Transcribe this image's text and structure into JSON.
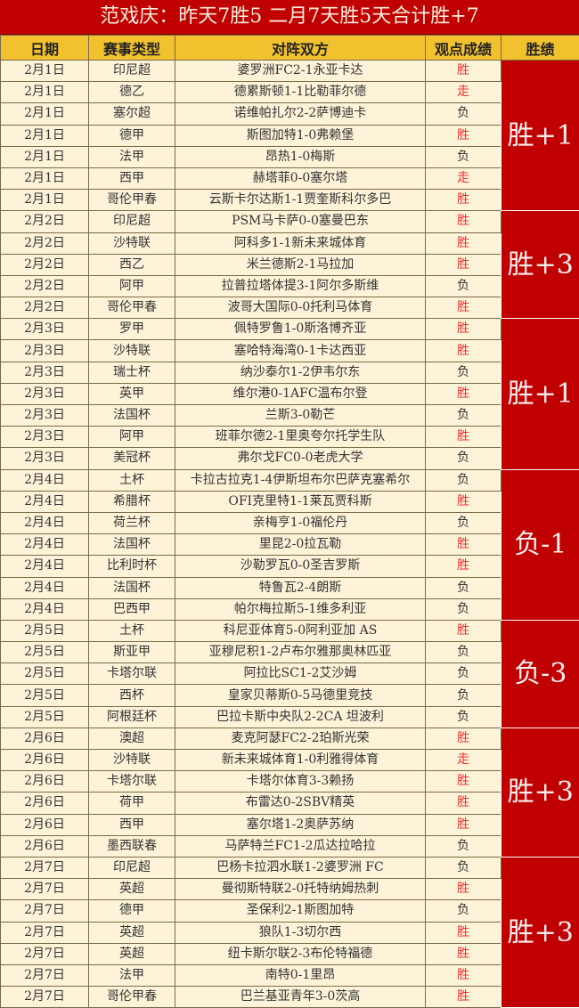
{
  "title": "范戏庆：昨天7胜5  二月7天胜5天合计胜+7",
  "headers": [
    "日期",
    "赛事类型",
    "对阵双方",
    "观点成绩",
    "胜绩"
  ],
  "colors": {
    "title_bg": "#c00000",
    "header_bg": "#f2c12e",
    "row_bg": "#fdf3d8",
    "win_text": "#f03030",
    "summary_bg": "#c00000"
  },
  "groups": [
    {
      "summary": "胜+1",
      "rows": [
        [
          "2月1日",
          "印尼超",
          "婆罗洲FC2-1永亚卡达",
          "胜"
        ],
        [
          "2月1日",
          "德乙",
          "德累斯顿1-1比勒菲尔德",
          "走"
        ],
        [
          "2月1日",
          "塞尔超",
          "诺维帕扎尔2-2萨博迪卡",
          "负"
        ],
        [
          "2月1日",
          "德甲",
          "斯图加特1-0弗赖堡",
          "胜"
        ],
        [
          "2月1日",
          "法甲",
          "昂热1-0梅斯",
          "负"
        ],
        [
          "2月1日",
          "西甲",
          "赫塔菲0-0塞尔塔",
          "走"
        ],
        [
          "2月1日",
          "哥伦甲春",
          "云斯卡尔达斯1-1贾奎斯科尔多巴",
          "胜"
        ]
      ]
    },
    {
      "summary": "胜+3",
      "rows": [
        [
          "2月2日",
          "印尼超",
          "PSM马卡萨0-0塞曼巴东",
          "胜"
        ],
        [
          "2月2日",
          "沙特联",
          "阿科多1-1新未来城体育",
          "胜"
        ],
        [
          "2月2日",
          "西乙",
          "米兰德斯2-1马拉加",
          "胜"
        ],
        [
          "2月2日",
          "阿甲",
          "拉普拉塔体提3-1阿尔多斯维",
          "负"
        ],
        [
          "2月2日",
          "哥伦甲春",
          "波哥大国际0-0托利马体育",
          "胜"
        ]
      ]
    },
    {
      "summary": "胜+1",
      "rows": [
        [
          "2月3日",
          "罗甲",
          "佩特罗鲁1-0斯洛博齐亚",
          "胜"
        ],
        [
          "2月3日",
          "沙特联",
          "塞哈特海湾0-1卡达西亚",
          "胜"
        ],
        [
          "2月3日",
          "瑞士杯",
          "纳沙泰尔1-2伊韦尔东",
          "负"
        ],
        [
          "2月3日",
          "英甲",
          "维尔港0-1AFC温布尔登",
          "胜"
        ],
        [
          "2月3日",
          "法国杯",
          "兰斯3-0勒芒",
          "负"
        ],
        [
          "2月3日",
          "阿甲",
          "班菲尔德2-1里奥夸尔托学生队",
          "胜"
        ],
        [
          "2月3日",
          "美冠杯",
          "弗尔戈FC0-0老虎大学",
          "负"
        ]
      ]
    },
    {
      "summary": "负-1",
      "rows": [
        [
          "2月4日",
          "土杯",
          "卡拉古拉克1-4伊斯坦布尔巴萨克塞希尔",
          "负"
        ],
        [
          "2月4日",
          "希腊杯",
          "OFI克里特1-1莱瓦贾科斯",
          "胜"
        ],
        [
          "2月4日",
          "荷兰杯",
          "亲梅亨1-0福伦丹",
          "负"
        ],
        [
          "2月4日",
          "法国杯",
          "里昆2-0拉瓦勒",
          "胜"
        ],
        [
          "2月4日",
          "比利时杯",
          "沙勒罗瓦0-0圣吉罗斯",
          "胜"
        ],
        [
          "2月4日",
          "法国杯",
          "特鲁瓦2-4朗斯",
          "负"
        ],
        [
          "2月4日",
          "巴西甲",
          "帕尔梅拉斯5-1维多利亚",
          "负"
        ]
      ]
    },
    {
      "summary": "负-3",
      "rows": [
        [
          "2月5日",
          "土杯",
          "科尼亚体育5-0阿利亚加 AS",
          "胜"
        ],
        [
          "2月5日",
          "斯亚甲",
          "亚穆尼积1-2卢布尔雅那奥林匹亚",
          "负"
        ],
        [
          "2月5日",
          "卡塔尔联",
          "阿拉比SC1-2艾沙姆",
          "负"
        ],
        [
          "2月5日",
          "西杯",
          "皇家贝蒂斯0-5马德里竞技",
          "负"
        ],
        [
          "2月5日",
          "阿根廷杯",
          "巴拉卡斯中央队2-2CA 坦波利",
          "负"
        ]
      ]
    },
    {
      "summary": "胜+3",
      "rows": [
        [
          "2月6日",
          "澳超",
          "麦克阿瑟FC2-2珀斯光荣",
          "胜"
        ],
        [
          "2月6日",
          "沙特联",
          "新未来城体育1-0利雅得体育",
          "走"
        ],
        [
          "2月6日",
          "卡塔尔联",
          "卡塔尔体育3-3赖扬",
          "胜"
        ],
        [
          "2月6日",
          "荷甲",
          "布雷达0-2SBV精英",
          "胜"
        ],
        [
          "2月6日",
          "西甲",
          "塞尔塔1-2奥萨苏纳",
          "胜"
        ],
        [
          "2月6日",
          "墨西联春",
          "马萨特兰FC1-2瓜达拉哈拉",
          "负"
        ]
      ]
    },
    {
      "summary": "胜+3",
      "rows": [
        [
          "2月7日",
          "印尼超",
          "巴杨卡拉泗水联1-2婆罗洲 FC",
          "负"
        ],
        [
          "2月7日",
          "英超",
          "曼彻斯特联2-0托特纳姆热刺",
          "胜"
        ],
        [
          "2月7日",
          "德甲",
          "圣保利2-1斯图加特",
          "负"
        ],
        [
          "2月7日",
          "英超",
          "狼队1-3切尔西",
          "胜"
        ],
        [
          "2月7日",
          "英超",
          "纽卡斯尔联2-3布伦特福德",
          "胜"
        ],
        [
          "2月7日",
          "法甲",
          "南特0-1里昂",
          "胜"
        ],
        [
          "2月7日",
          "哥伦甲春",
          "巴兰基亚青年3-0茨高",
          "胜"
        ]
      ]
    }
  ]
}
